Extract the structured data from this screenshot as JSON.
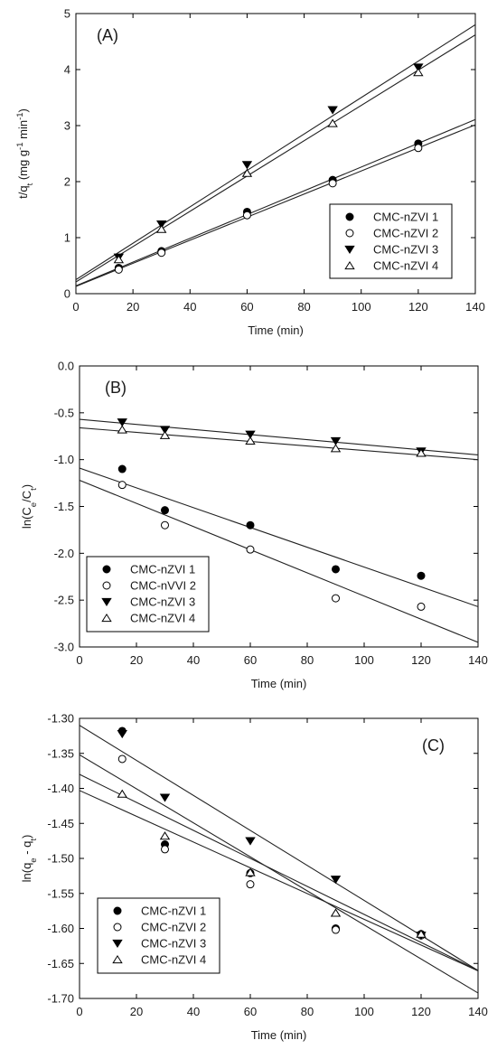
{
  "chart_data": [
    {
      "type": "scatter",
      "panel_label": "(A)",
      "xlabel": "Time (min)",
      "ylabel": {
        "base": "t/q",
        "sub": "t",
        "rest": " (mg g",
        "sup1": "-1",
        "mid": " min",
        "sup2": "-1",
        "end": ")"
      },
      "xlim": [
        0,
        140
      ],
      "ylim": [
        0,
        5
      ],
      "xticks": [
        0,
        20,
        40,
        60,
        80,
        100,
        120,
        140
      ],
      "yticks": [
        0,
        1,
        2,
        3,
        4,
        5
      ],
      "ytick_labels": [
        "0",
        "1",
        "2",
        "3",
        "4",
        "5"
      ],
      "grid": false,
      "legend_position": "lower-right",
      "series": [
        {
          "name": "CMC-nZVI 1",
          "marker": "filled-circle",
          "x": [
            15,
            30,
            60,
            90,
            120
          ],
          "y": [
            0.46,
            0.76,
            1.46,
            2.03,
            2.68
          ],
          "fit": {
            "intercept": 0.14,
            "slope": 0.0212
          }
        },
        {
          "name": "CMC-nZVI 2",
          "marker": "open-circle",
          "x": [
            15,
            30,
            60,
            90,
            120
          ],
          "y": [
            0.43,
            0.73,
            1.4,
            1.97,
            2.6
          ],
          "fit": {
            "intercept": 0.13,
            "slope": 0.0206
          }
        },
        {
          "name": "CMC-nZVI 3",
          "marker": "filled-triangle-down",
          "x": [
            15,
            30,
            60,
            90,
            120
          ],
          "y": [
            0.65,
            1.24,
            2.3,
            3.28,
            4.04
          ],
          "fit": {
            "intercept": 0.25,
            "slope": 0.0325
          }
        },
        {
          "name": "CMC-nZVI 4",
          "marker": "open-triangle-up",
          "x": [
            15,
            30,
            60,
            90,
            120
          ],
          "y": [
            0.61,
            1.15,
            2.15,
            3.04,
            3.95
          ],
          "fit": {
            "intercept": 0.21,
            "slope": 0.0315
          }
        }
      ]
    },
    {
      "type": "scatter",
      "panel_label": "(B)",
      "xlabel": "Time (min)",
      "ylabel": {
        "base": "ln(C",
        "sub": "e",
        "rest": "/C",
        "sub2": "t",
        "end": ")"
      },
      "xlim": [
        0,
        140
      ],
      "ylim": [
        -3.0,
        0.0
      ],
      "xticks": [
        0,
        20,
        40,
        60,
        80,
        100,
        120,
        140
      ],
      "yticks": [
        0.0,
        -0.5,
        -1.0,
        -1.5,
        -2.0,
        -2.5,
        -3.0
      ],
      "ytick_labels": [
        "0.0",
        "-0.5",
        "-1.0",
        "-1.5",
        "-2.0",
        "-2.5",
        "-3.0"
      ],
      "grid": false,
      "legend_position": "lower-left",
      "series": [
        {
          "name": "CMC-nZVI 1",
          "marker": "filled-circle",
          "x": [
            15,
            30,
            60,
            90,
            120
          ],
          "y": [
            -1.1,
            -1.54,
            -1.7,
            -2.17,
            -2.24
          ],
          "fit": {
            "intercept": -1.09,
            "slope": -0.01057
          }
        },
        {
          "name": "CMC-nVVI 2",
          "marker": "open-circle",
          "x": [
            15,
            30,
            60,
            90,
            120
          ],
          "y": [
            -1.27,
            -1.7,
            -1.96,
            -2.48,
            -2.57
          ],
          "fit": {
            "intercept": -1.22,
            "slope": -0.01236
          }
        },
        {
          "name": "CMC-nZVI 3",
          "marker": "filled-triangle-down",
          "x": [
            15,
            30,
            60,
            90,
            120
          ],
          "y": [
            -0.6,
            -0.68,
            -0.73,
            -0.8,
            -0.91
          ],
          "fit": {
            "intercept": -0.57,
            "slope": -0.00271
          }
        },
        {
          "name": "CMC-nZVI 4",
          "marker": "open-triangle-up",
          "x": [
            15,
            30,
            60,
            90,
            120
          ],
          "y": [
            -0.68,
            -0.74,
            -0.8,
            -0.88,
            -0.93
          ],
          "fit": {
            "intercept": -0.66,
            "slope": -0.00243
          }
        }
      ]
    },
    {
      "type": "scatter",
      "panel_label": "(C)",
      "xlabel": "Time (min)",
      "ylabel": {
        "base": "ln(q",
        "sub": "e",
        "rest": " - q",
        "sub2": "t",
        "end": ")"
      },
      "xlim": [
        0,
        140
      ],
      "ylim": [
        -1.7,
        -1.3
      ],
      "xticks": [
        0,
        20,
        40,
        60,
        80,
        100,
        120,
        140
      ],
      "yticks": [
        -1.3,
        -1.35,
        -1.4,
        -1.45,
        -1.5,
        -1.55,
        -1.6,
        -1.65,
        -1.7
      ],
      "ytick_labels": [
        "-1.30",
        "-1.35",
        "-1.40",
        "-1.45",
        "-1.50",
        "-1.55",
        "-1.60",
        "-1.65",
        "-1.70"
      ],
      "grid": false,
      "legend_position": "lower-left",
      "series": [
        {
          "name": "CMC-nZVI 1",
          "marker": "filled-circle",
          "x": [
            15,
            30,
            60,
            90,
            120
          ],
          "y": [
            -1.318,
            -1.48,
            -1.521,
            -1.6,
            -1.608
          ],
          "fit": {
            "intercept": -1.38,
            "slope": -0.002
          }
        },
        {
          "name": "CMC-nZVI 2",
          "marker": "open-circle",
          "x": [
            15,
            30,
            60,
            90,
            120
          ],
          "y": [
            -1.358,
            -1.487,
            -1.537,
            -1.602,
            -1.61
          ],
          "fit": {
            "intercept": -1.352,
            "slope": -0.00243
          }
        },
        {
          "name": "CMC-nZVI 3",
          "marker": "filled-triangle-down",
          "x": [
            15,
            30,
            60,
            90,
            120
          ],
          "y": [
            -1.322,
            -1.413,
            -1.475,
            -1.53,
            -1.61
          ],
          "fit": {
            "intercept": -1.31,
            "slope": -0.0025
          }
        },
        {
          "name": "CMC-nZVI 4",
          "marker": "open-triangle-up",
          "x": [
            15,
            30,
            60,
            90,
            120
          ],
          "y": [
            -1.408,
            -1.468,
            -1.52,
            -1.578,
            -1.608
          ],
          "fit": {
            "intercept": -1.403,
            "slope": -0.00184
          }
        }
      ]
    }
  ]
}
